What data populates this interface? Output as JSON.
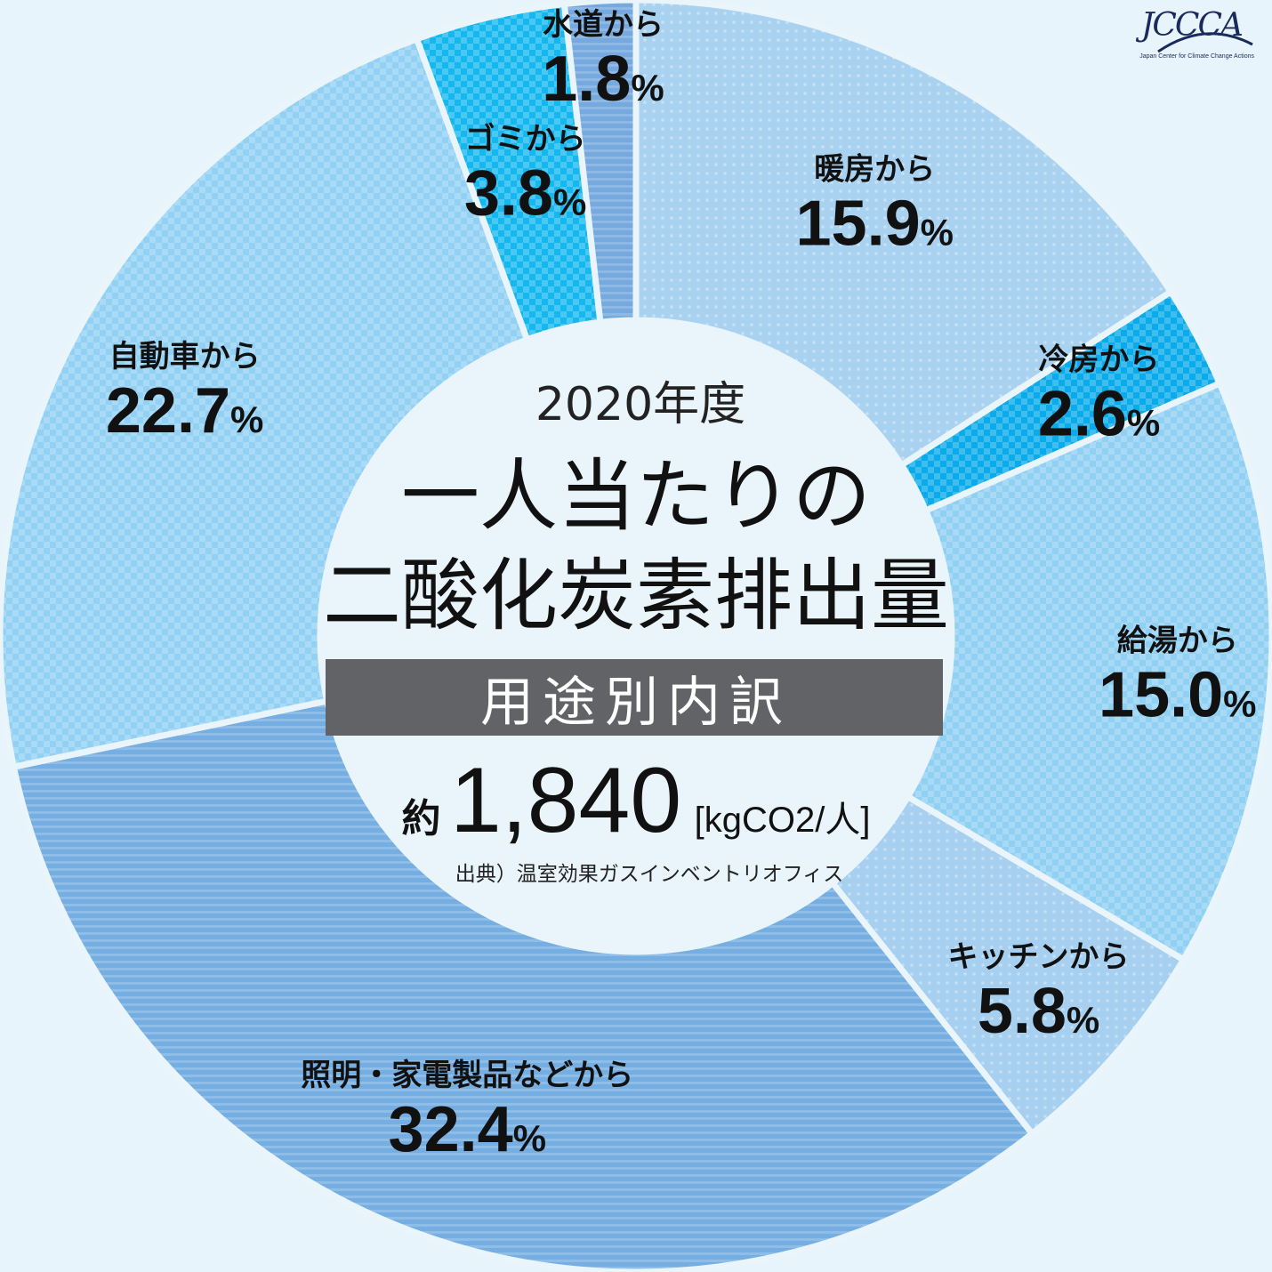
{
  "chart_data": {
    "type": "pie",
    "year": "2020年度",
    "title_line1": "一人当たりの",
    "title_line2": "二酸化炭素排出量",
    "subtitle": "用途別内訳",
    "total_prefix": "約",
    "total_value": "1,840",
    "total_unit": "[kgCO2/人]",
    "source": "出典）温室効果ガスインベントリオフィス",
    "slices": [
      {
        "label": "暖房から",
        "value": 15.9,
        "display": "15.9",
        "color": "#a9d2f0"
      },
      {
        "label": "冷房から",
        "value": 2.6,
        "display": "2.6",
        "color": "#0aabea"
      },
      {
        "label": "給湯から",
        "value": 15.0,
        "display": "15.0",
        "color": "#8fd0f3"
      },
      {
        "label": "キッチンから",
        "value": 5.8,
        "display": "5.8",
        "color": "#a6cff0"
      },
      {
        "label": "照明・家電製品などから",
        "value": 32.4,
        "display": "32.4",
        "color": "#75aee3"
      },
      {
        "label": "自動車から",
        "value": 22.7,
        "display": "22.7",
        "color": "#92d1f4"
      },
      {
        "label": "ゴミから",
        "value": 3.8,
        "display": "3.8",
        "color": "#14b8ee"
      },
      {
        "label": "水道から",
        "value": 1.8,
        "display": "1.8",
        "color": "#76a9df"
      }
    ],
    "percent_sign": "%"
  },
  "logo": {
    "text": "JCCCA",
    "tagline": "Japan Center for Climate Change Actions",
    "color": "#1a2a5c"
  }
}
